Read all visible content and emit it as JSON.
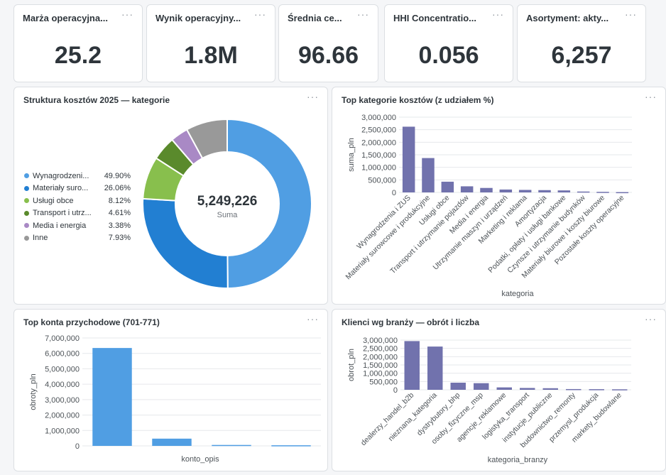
{
  "kpis": [
    {
      "title": "Marża operacyjna...",
      "value": "25.2"
    },
    {
      "title": "Wynik operacyjny...",
      "value": "1.8M"
    },
    {
      "title": "Średnia ce...",
      "value": "96.66"
    },
    {
      "title": "HHI Concentratio...",
      "value": "0.056"
    },
    {
      "title": "Asortyment: akty...",
      "value": "6,257"
    }
  ],
  "menu_glyph": "···",
  "colors": {
    "accent": "#509ee3",
    "bar_purple": "#7172ad",
    "bar_blue": "#509ee3"
  },
  "chart_data": [
    {
      "type": "pie",
      "title": "Struktura kosztów 2025 — kategorie",
      "center_value": "5,249,226",
      "center_label": "Suma",
      "slices": [
        {
          "label": "Wynagrodzeni...",
          "pct_label": "49.90%",
          "value": 49.9,
          "color": "#509ee3"
        },
        {
          "label": "Materiały suro...",
          "pct_label": "26.06%",
          "value": 26.06,
          "color": "#227fd2"
        },
        {
          "label": "Usługi obce",
          "pct_label": "8.12%",
          "value": 8.12,
          "color": "#88bf4d"
        },
        {
          "label": "Transport i utrz...",
          "pct_label": "4.61%",
          "value": 4.61,
          "color": "#5a8a2c"
        },
        {
          "label": "Media i energia",
          "pct_label": "3.38%",
          "value": 3.38,
          "color": "#a989c5"
        },
        {
          "label": "Inne",
          "pct_label": "7.93%",
          "value": 7.93,
          "color": "#999999"
        }
      ],
      "legend_position": "left"
    },
    {
      "type": "bar",
      "title": "Top kategorie kosztów (z udziałem %)",
      "xlabel": "kategoria",
      "ylabel": "suma_pln",
      "categories": [
        "Wynagrodzenia i ZUS",
        "Materiały surowcowe i produkcyjne",
        "Usługi obce",
        "Transport i utrzymanie pojazdów",
        "Media i energia",
        "Utrzymanie maszyn i urządzeń",
        "Marketing i reklama",
        "Amortyzacja",
        "Podatki, opłaty i usługi bankowe",
        "Czynsze i utrzymanie budynków",
        "Materiały biurowe i koszty biurowe",
        "Pozostałe koszty operacyjne"
      ],
      "values": [
        2620000,
        1370000,
        427000,
        243000,
        178000,
        115000,
        100000,
        92000,
        80000,
        35000,
        22000,
        12000
      ],
      "ylim": [
        0,
        3000000
      ],
      "yticks": [
        0,
        500000,
        1000000,
        1500000,
        2000000,
        2500000,
        3000000
      ],
      "ytick_labels": [
        "0",
        "500,000",
        "1,000,000",
        "1,500,000",
        "2,000,000",
        "2,500,000",
        "3,000,000"
      ],
      "color": "#7172ad"
    },
    {
      "type": "bar",
      "title": "Top konta przychodowe (701-771)",
      "xlabel": "konto_opis",
      "ylabel": "obroty_pln",
      "categories": [
        "",
        "",
        "",
        ""
      ],
      "values": [
        6350000,
        470000,
        60000,
        40000
      ],
      "ylim": [
        0,
        7000000
      ],
      "yticks": [
        0,
        1000000,
        2000000,
        3000000,
        4000000,
        5000000,
        6000000,
        7000000
      ],
      "ytick_labels": [
        "0",
        "1,000,000",
        "2,000,000",
        "3,000,000",
        "4,000,000",
        "5,000,000",
        "6,000,000",
        "7,000,000"
      ],
      "color": "#509ee3"
    },
    {
      "type": "bar",
      "title": "Klienci wg branży — obrót i liczba",
      "xlabel": "kategoria_branzy",
      "ylabel": "obrot_pln",
      "categories": [
        "dealerzy_handel_b2b",
        "nieznana_kategoria",
        "dystrybutory_bhp",
        "osoby_fizyczne_msp",
        "agencje_reklamowe",
        "logistyka_transport",
        "instytucje_publiczne",
        "budownictwo_remonty",
        "przemysl_produkcja",
        "markety_budowlane"
      ],
      "values": [
        2940000,
        2610000,
        430000,
        400000,
        145000,
        110000,
        95000,
        45000,
        38000,
        30000
      ],
      "ylim": [
        0,
        3000000
      ],
      "yticks": [
        0,
        500000,
        1000000,
        1500000,
        2000000,
        2500000,
        3000000
      ],
      "ytick_labels": [
        "0",
        "500,000",
        "1,000,000",
        "1,500,000",
        "2,000,000",
        "2,500,000",
        "3,000,000"
      ],
      "color": "#7172ad"
    }
  ]
}
